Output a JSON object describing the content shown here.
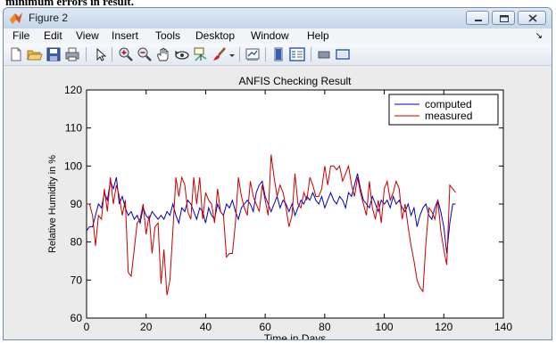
{
  "caption": "minimum errors in result.",
  "window": {
    "title": "Figure 2"
  },
  "menu": [
    "File",
    "Edit",
    "View",
    "Insert",
    "Tools",
    "Desktop",
    "Window",
    "Help"
  ],
  "toolbar": {
    "icons": [
      "new-file-icon",
      "open-folder-icon",
      "save-icon",
      "print-icon",
      "pointer-icon",
      "zoom-in-icon",
      "zoom-out-icon",
      "pan-icon",
      "rotate-icon",
      "data-cursor-icon",
      "brush-icon",
      "brush-dropdown-icon",
      "link-plot-icon",
      "colorbar-icon",
      "legend-icon",
      "hide-plot-tools-icon",
      "show-plot-tools-icon"
    ]
  },
  "chart_data": {
    "type": "line",
    "title": "ANFIS Checking Result",
    "xlabel": "Time in Days",
    "ylabel": "Relative Humidity in %",
    "xlim": [
      0,
      140
    ],
    "ylim": [
      60,
      120
    ],
    "xticks": [
      0,
      20,
      40,
      60,
      80,
      100,
      120,
      140
    ],
    "yticks": [
      60,
      70,
      80,
      90,
      100,
      110,
      120
    ],
    "grid": false,
    "legend_position": "top-right",
    "series": [
      {
        "name": "computed",
        "color": "#0000b4",
        "x": [
          0,
          1,
          2,
          3,
          4,
          5,
          6,
          7,
          8,
          9,
          10,
          11,
          12,
          13,
          14,
          15,
          16,
          17,
          18,
          19,
          20,
          21,
          22,
          23,
          24,
          25,
          26,
          27,
          28,
          29,
          30,
          31,
          32,
          33,
          34,
          35,
          36,
          37,
          38,
          39,
          40,
          41,
          42,
          43,
          44,
          45,
          46,
          47,
          48,
          49,
          50,
          51,
          52,
          53,
          54,
          55,
          56,
          57,
          58,
          59,
          60,
          61,
          62,
          63,
          64,
          65,
          66,
          67,
          68,
          69,
          70,
          71,
          72,
          73,
          74,
          75,
          76,
          77,
          78,
          79,
          80,
          81,
          82,
          83,
          84,
          85,
          86,
          87,
          88,
          89,
          90,
          91,
          92,
          93,
          94,
          95,
          96,
          97,
          98,
          99,
          100,
          101,
          102,
          103,
          104,
          105,
          106,
          107,
          108,
          109,
          110,
          111,
          112,
          113,
          114,
          115,
          116,
          117,
          118,
          119,
          120,
          121,
          122,
          123,
          124
        ],
        "y": [
          83,
          84,
          84,
          87,
          90,
          89,
          93,
          91,
          96,
          94,
          97,
          90,
          92,
          89,
          87,
          88,
          86,
          87,
          85,
          89,
          87,
          86,
          88,
          87,
          86,
          87,
          86,
          88,
          87,
          90,
          87,
          85,
          89,
          88,
          91,
          90,
          88,
          86,
          89,
          88,
          85,
          89,
          87,
          86,
          90,
          88,
          87,
          90,
          89,
          91,
          88,
          86,
          89,
          90,
          91,
          90,
          88,
          93,
          95,
          96,
          92,
          90,
          88,
          90,
          92,
          89,
          91,
          90,
          88,
          90,
          87,
          89,
          91,
          90,
          92,
          91,
          93,
          91,
          90,
          92,
          89,
          91,
          93,
          91,
          90,
          92,
          91,
          89,
          93,
          92,
          95,
          98,
          94,
          91,
          90,
          89,
          92,
          90,
          88,
          91,
          90,
          91,
          89,
          92,
          90,
          91,
          89,
          88,
          90,
          87,
          89,
          84,
          87,
          89,
          90,
          87,
          86,
          89,
          91,
          88,
          84,
          77,
          85,
          90,
          90
        ]
      },
      {
        "name": "measured",
        "color": "#c80000",
        "x": [
          0,
          1,
          2,
          3,
          4,
          5,
          6,
          7,
          8,
          9,
          10,
          11,
          12,
          13,
          14,
          15,
          16,
          17,
          18,
          19,
          20,
          21,
          22,
          23,
          24,
          25,
          26,
          27,
          28,
          29,
          30,
          31,
          32,
          33,
          34,
          35,
          36,
          37,
          38,
          39,
          40,
          41,
          42,
          43,
          44,
          45,
          46,
          47,
          48,
          49,
          50,
          51,
          52,
          53,
          54,
          55,
          56,
          57,
          58,
          59,
          60,
          61,
          62,
          63,
          64,
          65,
          66,
          67,
          68,
          69,
          70,
          71,
          72,
          73,
          74,
          75,
          76,
          77,
          78,
          79,
          80,
          81,
          82,
          83,
          84,
          85,
          86,
          87,
          88,
          89,
          90,
          91,
          92,
          93,
          94,
          95,
          96,
          97,
          98,
          99,
          100,
          101,
          102,
          103,
          104,
          105,
          106,
          107,
          108,
          109,
          110,
          111,
          112,
          113,
          114,
          115,
          116,
          117,
          118,
          119,
          120,
          121,
          122,
          123,
          124
        ],
        "y": [
          90,
          90,
          87,
          79,
          87,
          86,
          94,
          88,
          97,
          90,
          95,
          92,
          87,
          91,
          72,
          71,
          78,
          85,
          86,
          90,
          82,
          87,
          77,
          84,
          85,
          69,
          78,
          66,
          70,
          83,
          97,
          92,
          97,
          95,
          88,
          86,
          97,
          90,
          97,
          86,
          93,
          91,
          90,
          85,
          94,
          88,
          87,
          76,
          77,
          77,
          85,
          97,
          92,
          89,
          87,
          96,
          92,
          90,
          88,
          95,
          91,
          87,
          103,
          97,
          92,
          95,
          93,
          89,
          84,
          87,
          98,
          90,
          89,
          93,
          91,
          97,
          95,
          92,
          92,
          94,
          100,
          95,
          100,
          100,
          99,
          100,
          96,
          98,
          100,
          95,
          92,
          97,
          93,
          90,
          87,
          96,
          89,
          86,
          91,
          85,
          94,
          96,
          91,
          93,
          96,
          94,
          86,
          90,
          84,
          79,
          75,
          70,
          68,
          67,
          80,
          89,
          88,
          86,
          91,
          83,
          78,
          74,
          95,
          94,
          93
        ]
      }
    ]
  }
}
